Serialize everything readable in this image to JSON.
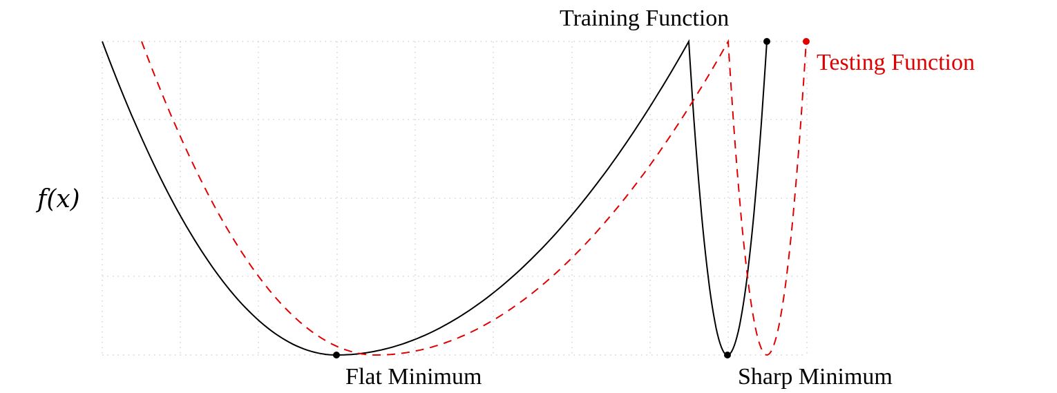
{
  "labels": {
    "y_axis": "f(x)",
    "training": "Training Function",
    "testing": "Testing Function",
    "flat_minimum": "Flat Minimum",
    "sharp_minimum": "Sharp Minimum"
  },
  "colors": {
    "training": "#000000",
    "testing": "#e00000",
    "grid": "#bdbdbd"
  },
  "styles": {
    "training_line": "solid",
    "testing_line": "dashed",
    "grid": "dotted"
  }
}
